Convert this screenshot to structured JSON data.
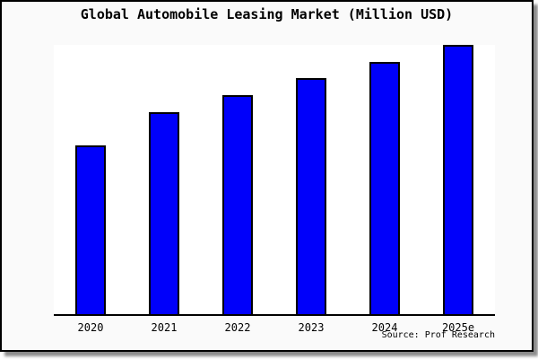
{
  "title": "Global Automobile Leasing Market (Million USD)",
  "source_note": "Source: Prof Research",
  "colors": {
    "bar_fill": "#0000fa",
    "bar_border": "#000000",
    "card_background": "#fafafa",
    "plot_background": "#ffffff",
    "axis_line": "#000000",
    "text": "#000000"
  },
  "chart_data": {
    "type": "bar",
    "title": "Global Automobile Leasing Market (Million USD)",
    "categories": [
      "2020",
      "2021",
      "2022",
      "2023",
      "2024",
      "2025e"
    ],
    "values": [
      62.7,
      75.0,
      81.3,
      87.7,
      93.7,
      100.0
    ],
    "value_scale": "percent of tallest bar (y-axis has no tick labels in source image)",
    "xlabel": "",
    "ylabel": "",
    "ylim": [
      0,
      100
    ],
    "gridlines": false,
    "legend": false,
    "y_axis_labels_visible": false,
    "annotations": [
      "Source: Prof Research"
    ]
  }
}
